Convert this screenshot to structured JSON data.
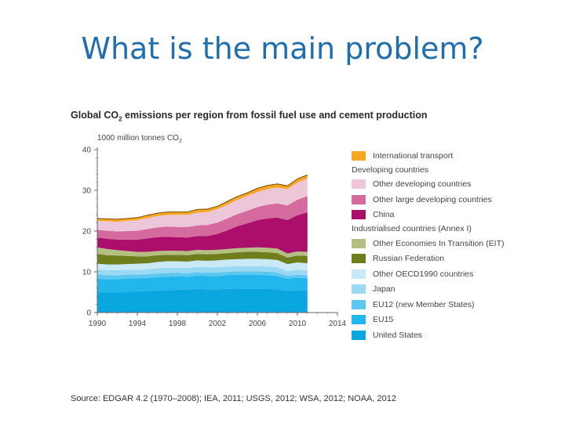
{
  "slide": {
    "title": "What is the main problem?"
  },
  "chart_title": {
    "pre": "Global CO",
    "sub": "2",
    "post": " emissions per region from fossil fuel use and cement production"
  },
  "unit": {
    "pre": "1000 million tonnes CO",
    "sub": "2"
  },
  "source": "Source: EDGAR 4.2 (1970–2008); IEA, 2011; USGS, 2012; WSA, 2012; NOAA, 2012",
  "legend": {
    "developing_heading": "Developing countries",
    "industrialised_heading": "Industrialised countries (Annex I)"
  },
  "chart_data": {
    "type": "area",
    "stacked": true,
    "title": "Global CO2 emissions per region from fossil fuel use and cement production",
    "ylabel": "1000 million tonnes CO2",
    "xlim": [
      1990,
      2014
    ],
    "ylim": [
      0,
      40
    ],
    "xticks": [
      1990,
      1994,
      1998,
      2002,
      2006,
      2010,
      2014
    ],
    "yticks": [
      0,
      10,
      20,
      30,
      40
    ],
    "grid": false,
    "legend_position": "right",
    "x": [
      1990,
      1991,
      1992,
      1993,
      1994,
      1995,
      1996,
      1997,
      1998,
      1999,
      2000,
      2001,
      2002,
      2003,
      2004,
      2005,
      2006,
      2007,
      2008,
      2009,
      2010,
      2011
    ],
    "series": [
      {
        "name": "United States",
        "color": "#0aa6e0",
        "values": [
          5.0,
          4.9,
          5.0,
          5.1,
          5.2,
          5.3,
          5.4,
          5.5,
          5.6,
          5.6,
          5.8,
          5.7,
          5.7,
          5.8,
          5.9,
          5.9,
          5.9,
          5.9,
          5.7,
          5.3,
          5.5,
          5.4
        ]
      },
      {
        "name": "EU15",
        "color": "#22b6ec",
        "values": [
          3.3,
          3.3,
          3.2,
          3.2,
          3.2,
          3.2,
          3.3,
          3.3,
          3.3,
          3.2,
          3.3,
          3.3,
          3.3,
          3.4,
          3.4,
          3.4,
          3.4,
          3.3,
          3.3,
          3.0,
          3.1,
          3.0
        ]
      },
      {
        "name": "EU12 (new Member States)",
        "color": "#5ec7ef",
        "values": [
          1.1,
          1.0,
          1.0,
          1.0,
          0.9,
          0.9,
          0.9,
          0.9,
          0.9,
          0.8,
          0.8,
          0.8,
          0.8,
          0.8,
          0.8,
          0.8,
          0.8,
          0.8,
          0.8,
          0.7,
          0.7,
          0.7
        ]
      },
      {
        "name": "Japan",
        "color": "#9bd8f3",
        "values": [
          1.2,
          1.2,
          1.2,
          1.2,
          1.2,
          1.2,
          1.3,
          1.3,
          1.2,
          1.3,
          1.3,
          1.3,
          1.3,
          1.3,
          1.3,
          1.3,
          1.3,
          1.3,
          1.3,
          1.2,
          1.2,
          1.2
        ]
      },
      {
        "name": "Other OECD1990 countries",
        "color": "#c9e9f7",
        "values": [
          1.4,
          1.4,
          1.4,
          1.4,
          1.5,
          1.5,
          1.5,
          1.6,
          1.6,
          1.6,
          1.6,
          1.6,
          1.7,
          1.7,
          1.7,
          1.8,
          1.8,
          1.8,
          1.8,
          1.7,
          1.8,
          1.8
        ]
      },
      {
        "name": "Russian Federation",
        "color": "#6f7d1c",
        "values": [
          2.4,
          2.3,
          2.2,
          2.0,
          1.8,
          1.7,
          1.7,
          1.6,
          1.6,
          1.6,
          1.6,
          1.6,
          1.6,
          1.6,
          1.7,
          1.7,
          1.7,
          1.7,
          1.7,
          1.6,
          1.7,
          1.8
        ]
      },
      {
        "name": "Other Economies In Transition (EIT)",
        "color": "#b4bf82",
        "values": [
          1.6,
          1.5,
          1.3,
          1.2,
          1.1,
          1.1,
          1.0,
          1.0,
          1.0,
          1.0,
          1.0,
          1.0,
          1.0,
          1.0,
          1.0,
          1.0,
          1.1,
          1.1,
          1.1,
          1.0,
          1.0,
          1.0
        ]
      },
      {
        "name": "China",
        "color": "#ac0e6b",
        "values": [
          2.4,
          2.5,
          2.6,
          2.8,
          3.0,
          3.3,
          3.4,
          3.4,
          3.3,
          3.3,
          3.4,
          3.5,
          3.9,
          4.6,
          5.4,
          6.0,
          6.7,
          7.2,
          7.6,
          8.2,
          8.9,
          9.7
        ]
      },
      {
        "name": "Other large developing countries",
        "color": "#d46a9e",
        "values": [
          1.9,
          2.0,
          2.0,
          2.1,
          2.2,
          2.3,
          2.4,
          2.5,
          2.5,
          2.6,
          2.6,
          2.7,
          2.8,
          2.9,
          3.0,
          3.1,
          3.2,
          3.4,
          3.5,
          3.6,
          3.8,
          4.0
        ]
      },
      {
        "name": "Other developing countries",
        "color": "#edc6d9",
        "values": [
          2.2,
          2.3,
          2.4,
          2.5,
          2.6,
          2.7,
          2.8,
          2.9,
          3.0,
          3.0,
          3.1,
          3.2,
          3.3,
          3.4,
          3.5,
          3.6,
          3.7,
          3.8,
          3.9,
          4.0,
          4.2,
          4.3
        ]
      },
      {
        "name": "International transport",
        "color": "#f5a623",
        "values": [
          0.6,
          0.6,
          0.6,
          0.6,
          0.6,
          0.7,
          0.7,
          0.7,
          0.7,
          0.7,
          0.8,
          0.7,
          0.7,
          0.8,
          0.8,
          0.8,
          0.9,
          0.9,
          0.9,
          0.8,
          0.9,
          0.9
        ]
      }
    ]
  }
}
